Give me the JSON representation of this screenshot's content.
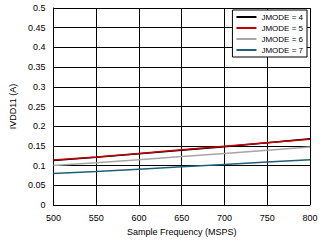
{
  "chart_data": {
    "type": "line",
    "x_label": "Sample Frequency (MSPS)",
    "y_label": "IVDD11 (A)",
    "x": [
      500,
      550,
      600,
      650,
      700,
      750,
      800
    ],
    "series": [
      {
        "name": "JMODE = 4",
        "color": "#000000",
        "values": [
          0.113,
          0.121,
          0.13,
          0.139,
          0.148,
          0.158,
          0.168
        ]
      },
      {
        "name": "JMODE = 5",
        "color": "#c00000",
        "values": [
          0.114,
          0.122,
          0.131,
          0.14,
          0.149,
          0.158,
          0.167
        ]
      },
      {
        "name": "JMODE = 6",
        "color": "#a6a6a6",
        "values": [
          0.1,
          0.107,
          0.115,
          0.123,
          0.131,
          0.139,
          0.147
        ]
      },
      {
        "name": "JMODE = 7",
        "color": "#1f5f7a",
        "values": [
          0.08,
          0.085,
          0.091,
          0.097,
          0.103,
          0.109,
          0.115
        ]
      }
    ],
    "xlim": [
      500,
      800
    ],
    "xticks": [
      500,
      550,
      600,
      650,
      700,
      750,
      800
    ],
    "ylim": [
      0,
      0.5
    ],
    "yticks": [
      0,
      0.05,
      0.1,
      0.15,
      0.2,
      0.25,
      0.3,
      0.35,
      0.4,
      0.45,
      0.5
    ],
    "grid": true,
    "legend": "top-right"
  }
}
